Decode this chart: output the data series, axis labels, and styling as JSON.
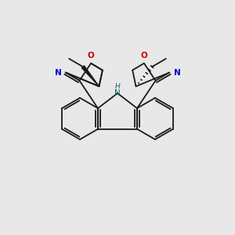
{
  "background_color": "#e8e8e8",
  "bond_color": "#1a1a1a",
  "N_color": "#0000cc",
  "O_color": "#cc0000",
  "NH_color": "#006666",
  "figsize": [
    3.0,
    3.0
  ],
  "dpi": 100,
  "xlim": [
    0,
    10
  ],
  "ylim": [
    0,
    10
  ]
}
